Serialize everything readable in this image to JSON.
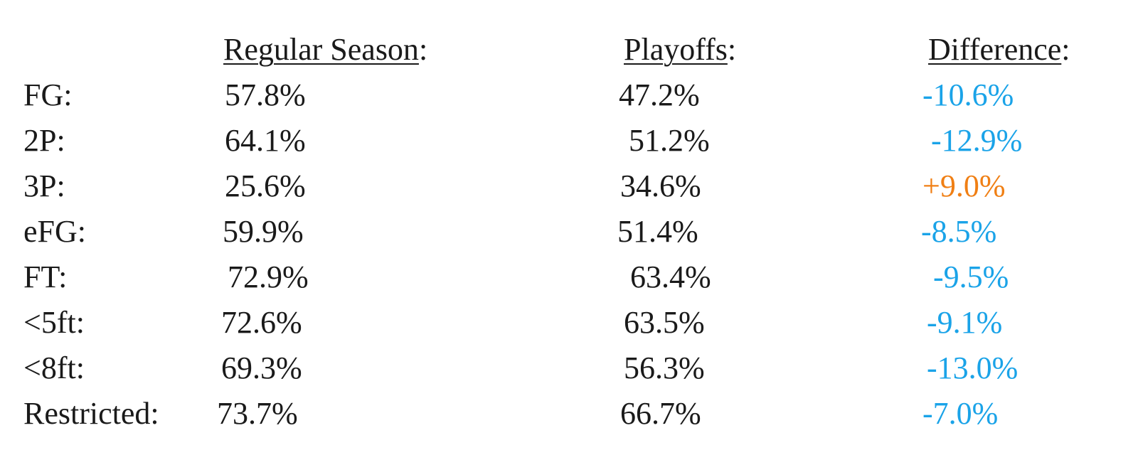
{
  "headers": {
    "regular_season": "Regular Season",
    "playoffs": "Playoffs",
    "difference": "Difference",
    "colon": ":"
  },
  "colors": {
    "negative": "#1aa3e8",
    "positive": "#f07f14",
    "text": "#1a1a1a"
  },
  "rows": [
    {
      "label": "FG:",
      "regular": "57.8%",
      "playoffs": "47.2%",
      "difference": "-10.6%",
      "sign": "negative"
    },
    {
      "label": "2P:",
      "regular": "64.1%",
      "playoffs": "51.2%",
      "difference": "-12.9%",
      "sign": "negative"
    },
    {
      "label": "3P:",
      "regular": "25.6%",
      "playoffs": "34.6%",
      "difference": "+9.0%",
      "sign": "positive"
    },
    {
      "label": "eFG:",
      "regular": "59.9%",
      "playoffs": "51.4%",
      "difference": "-8.5%",
      "sign": "negative"
    },
    {
      "label": "FT:",
      "regular": "72.9%",
      "playoffs": "63.4%",
      "difference": "-9.5%",
      "sign": "negative"
    },
    {
      "label": "<5ft:",
      "regular": "72.6%",
      "playoffs": "63.5%",
      "difference": "-9.1%",
      "sign": "negative"
    },
    {
      "label": "<8ft:",
      "regular": "69.3%",
      "playoffs": "56.3%",
      "difference": "-13.0%",
      "sign": "negative"
    },
    {
      "label": "Restricted:",
      "regular": "73.7%",
      "playoffs": "66.7%",
      "difference": "-7.0%",
      "sign": "negative"
    }
  ]
}
